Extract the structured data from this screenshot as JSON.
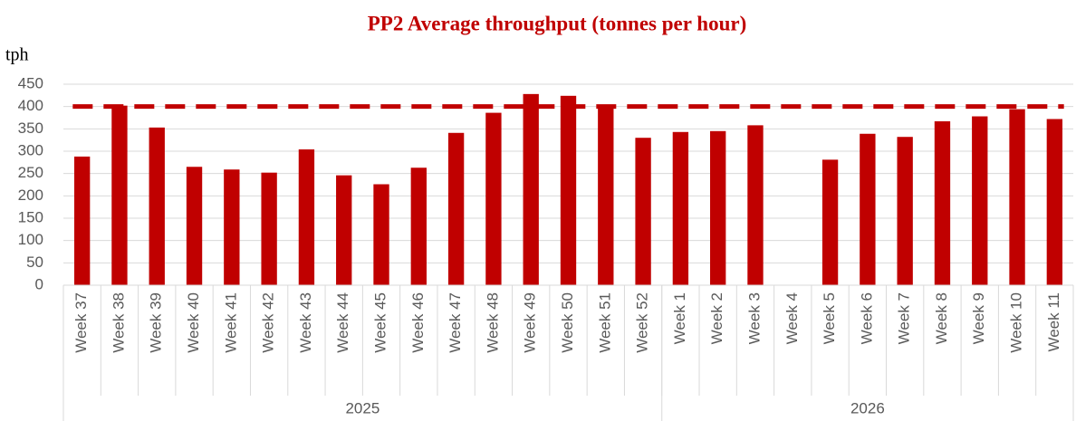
{
  "chart_data": {
    "type": "bar",
    "title": "PP2 Average throughput (tonnes per hour)",
    "y_label": "tph",
    "categories": [
      "Week 37",
      "Week 38",
      "Week 39",
      "Week 40",
      "Week 41",
      "Week 42",
      "Week 43",
      "Week 44",
      "Week 45",
      "Week 46",
      "Week 47",
      "Week 48",
      "Week 49",
      "Week 50",
      "Week 51",
      "Week 52",
      "Week 1",
      "Week 2",
      "Week 3",
      "Week 4",
      "Week 5",
      "Week 6",
      "Week 7",
      "Week 8",
      "Week 9",
      "Week 10",
      "Week 11"
    ],
    "values": [
      288,
      402,
      353,
      265,
      259,
      252,
      304,
      246,
      226,
      263,
      341,
      386,
      428,
      424,
      402,
      330,
      343,
      345,
      358,
      null,
      281,
      339,
      332,
      367,
      378,
      394,
      372
    ],
    "color": "#c00000",
    "groups": [
      {
        "label": "2025",
        "count": 16
      },
      {
        "label": "2026",
        "count": 11
      }
    ],
    "reference_line": {
      "value": 400,
      "color": "#c00000"
    },
    "ylim": [
      0,
      450
    ],
    "yticks": [
      0,
      50,
      100,
      150,
      200,
      250,
      300,
      350,
      400,
      450
    ],
    "grid": true
  }
}
